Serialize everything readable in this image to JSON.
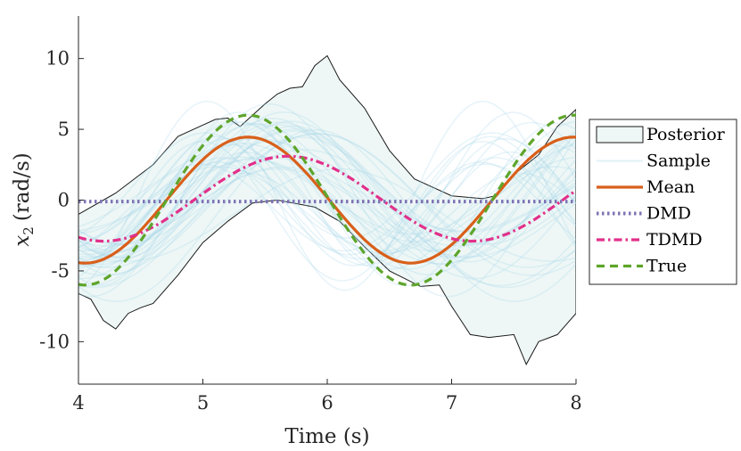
{
  "chart_data": {
    "type": "line",
    "title": "",
    "xlabel": "Time (s)",
    "ylabel_var": "x",
    "ylabel_sub": "2",
    "ylabel_unit": "(rad/s)",
    "xlim": [
      4,
      8
    ],
    "ylim": [
      -13,
      13
    ],
    "xticks": [
      4,
      5,
      6,
      7,
      8
    ],
    "xtick_labels": [
      "4",
      "5",
      "6",
      "7",
      "8"
    ],
    "yticks": [
      10,
      5,
      0,
      -5,
      -10
    ],
    "ytick_labels": [
      "10",
      "5",
      "0",
      "-5",
      "-10"
    ],
    "grid": false,
    "legend_position": "right",
    "posterior": {
      "name": "Posterior",
      "upper": [
        [
          4.0,
          -1.0
        ],
        [
          4.3,
          0.5
        ],
        [
          4.6,
          2.5
        ],
        [
          4.8,
          4.5
        ],
        [
          5.0,
          5.3
        ],
        [
          5.1,
          5.7
        ],
        [
          5.2,
          5.8
        ],
        [
          5.3,
          5.2
        ],
        [
          5.5,
          6.8
        ],
        [
          5.6,
          7.5
        ],
        [
          5.7,
          7.9
        ],
        [
          5.8,
          8.0
        ],
        [
          5.9,
          9.5
        ],
        [
          6.0,
          10.2
        ],
        [
          6.1,
          8.5
        ],
        [
          6.3,
          6.5
        ],
        [
          6.5,
          3.5
        ],
        [
          6.7,
          1.5
        ],
        [
          7.0,
          0.3
        ],
        [
          7.25,
          0.1
        ],
        [
          7.35,
          0.3
        ],
        [
          7.5,
          1.8
        ],
        [
          7.7,
          3.2
        ],
        [
          7.85,
          5.2
        ],
        [
          8.0,
          6.4
        ]
      ],
      "lower": [
        [
          4.0,
          -6.6
        ],
        [
          4.1,
          -7.0
        ],
        [
          4.2,
          -8.5
        ],
        [
          4.3,
          -9.1
        ],
        [
          4.4,
          -8.0
        ],
        [
          4.5,
          -7.6
        ],
        [
          4.6,
          -7.3
        ],
        [
          4.8,
          -5.3
        ],
        [
          5.0,
          -3.0
        ],
        [
          5.2,
          -1.5
        ],
        [
          5.4,
          -0.2
        ],
        [
          5.6,
          0.0
        ],
        [
          5.9,
          -0.5
        ],
        [
          6.1,
          -1.5
        ],
        [
          6.3,
          -3.3
        ],
        [
          6.5,
          -5.0
        ],
        [
          6.75,
          -6.1
        ],
        [
          6.9,
          -6.0
        ],
        [
          7.0,
          -7.5
        ],
        [
          7.15,
          -9.5
        ],
        [
          7.3,
          -9.7
        ],
        [
          7.5,
          -9.5
        ],
        [
          7.6,
          -11.6
        ],
        [
          7.7,
          -10.0
        ],
        [
          7.85,
          -9.5
        ],
        [
          8.0,
          -8.0
        ]
      ]
    },
    "samples": {
      "name": "Sample",
      "count": 40
    },
    "series": [
      {
        "name": "Mean",
        "color": "#d95f1a",
        "style": "solid",
        "amplitude": 4.45,
        "omega": 2.4,
        "phase": -1.7,
        "offset": 0.0
      },
      {
        "name": "DMD",
        "color": "#7e73b4",
        "style": "dotted",
        "amplitude": 0.0,
        "omega": 0.0,
        "phase": 0.0,
        "offset": -0.1
      },
      {
        "name": "TDMD",
        "color": "#e2308a",
        "style": "dashdot",
        "amplitude": 3.0,
        "omega": 2.12,
        "phase": -2.0,
        "offset": 0.1
      },
      {
        "name": "True",
        "color": "#5ea52b",
        "style": "dashed",
        "amplitude": 6.0,
        "omega": 2.4,
        "phase": -1.7,
        "offset": 0.0
      }
    ],
    "colors": {
      "posterior_fill": "#eef7f6",
      "posterior_edge": "#1a1a1a",
      "sample": "#a8d8ea"
    }
  }
}
